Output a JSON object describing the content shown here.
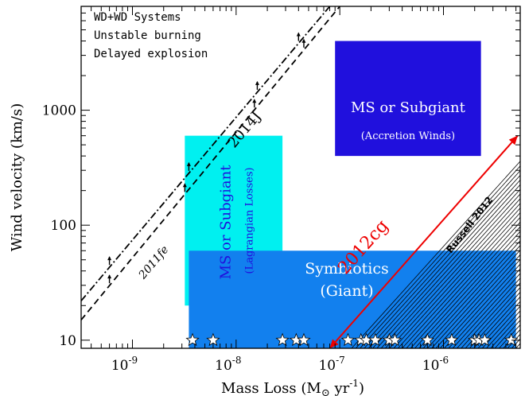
{
  "chart_data": {
    "type": "scatter",
    "title": "",
    "xlabel": "Mass Loss (M",
    "xlabel_sun": "⊙",
    "xlabel_units": " yr",
    "xlabel_exp": "-1",
    "xlabel_close": ")",
    "ylabel": "Wind velocity (km/s)",
    "xscale": "log",
    "yscale": "log",
    "xlim": [
      3.2e-10,
      5.5e-06
    ],
    "ylim": [
      8.5,
      8000
    ],
    "grid": false,
    "x_ticks": [
      {
        "value": 1e-09,
        "base": "10",
        "exp": "-9"
      },
      {
        "value": 1e-08,
        "base": "10",
        "exp": "-8"
      },
      {
        "value": 1e-07,
        "base": "10",
        "exp": "-7"
      },
      {
        "value": 1e-06,
        "base": "10",
        "exp": "-6"
      }
    ],
    "y_ticks": [
      {
        "value": 10,
        "label": "10"
      },
      {
        "value": 100,
        "label": "100"
      },
      {
        "value": 1000,
        "label": "1000"
      }
    ],
    "corner_text": [
      "WD+WD Systems",
      "Unstable burning",
      "Delayed explosion"
    ],
    "regions": [
      {
        "name": "accretion-winds",
        "x0": 9e-08,
        "x1": 2.3e-06,
        "y0": 400,
        "y1": 4000,
        "color": "#2010dd",
        "label1": "MS or Subgiant",
        "label2": "(Accretion Winds)",
        "label_color": "#ffffff"
      },
      {
        "name": "lagrangian-losses",
        "x0": 3.2e-09,
        "x1": 2.8e-08,
        "y0": 20,
        "y1": 600,
        "color": "#00f0f0",
        "label1": "MS or Subgiant",
        "label2": "(Lagrangian Losses)",
        "label_color": "#2010dd"
      },
      {
        "name": "symbiotics",
        "x0": 3.5e-09,
        "x1": 5e-06,
        "y0": 8.5,
        "y1": 60,
        "color": "#1280ee",
        "label1": "Symbiotics",
        "label2": "(Giant)",
        "label_color": "#ffffff"
      }
    ],
    "symbiotic_stars_x": [
      3.8e-09,
      6e-09,
      2.8e-08,
      3.8e-08,
      4.5e-08,
      1.2e-07,
      1.6e-07,
      1.8e-07,
      2.2e-07,
      3e-07,
      3.4e-07,
      7e-07,
      1.2e-06,
      2e-06,
      2.2e-06,
      2.5e-06,
      4.5e-06
    ],
    "symbiotic_stars_y": 10,
    "series": [
      {
        "name": "2014J",
        "style": "dashdot",
        "color": "#000000",
        "x": [
          3.2e-10,
          8e-08
        ],
        "y": [
          22,
          8000
        ],
        "label_x": 1.3e-08,
        "label_y": 600
      },
      {
        "name": "2011fe",
        "style": "dashed",
        "color": "#000000",
        "x": [
          3.2e-10,
          1e-07
        ],
        "y": [
          15,
          8000
        ],
        "label_x": 1.7e-09,
        "label_y": 50
      },
      {
        "name": "2012cg",
        "style": "solid",
        "color": "#ee0000",
        "x": [
          8e-08,
          5.2e-06
        ],
        "y": [
          8.5,
          600
        ],
        "label_x": 1.6e-07,
        "label_y": 60
      },
      {
        "name": "Russell 2012",
        "style": "thin-bundle",
        "color": "#000000",
        "label_x": 2.1e-06,
        "label_y": 80
      }
    ],
    "arrow_markers_2014J": [
      6e-10,
      3.5e-09,
      1.6e-08,
      4e-08,
      1e-07
    ],
    "arrow_markers_2011fe": [
      6e-10,
      3.2e-09,
      1.5e-08,
      4.5e-08
    ],
    "russell_bundle": {
      "x_start_min": 1.3e-07,
      "x_start_max": 5e-06,
      "y_start": 8.5,
      "slope": 1,
      "count": 40
    }
  }
}
